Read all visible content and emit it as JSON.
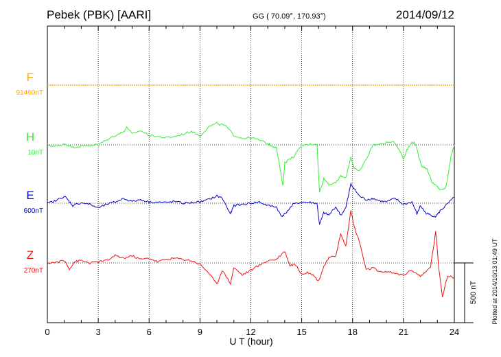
{
  "header": {
    "station": "Pebek (PBK)  [AARI]",
    "coords": "GG ( 70.09°, 170.93°)",
    "date": "2014/09/12"
  },
  "plotted_note": "Plotted at 2014/10/13 01:49 UT",
  "scale_bar_label": "500 nT",
  "chart_data": {
    "type": "line",
    "title": "",
    "xlabel": "U T (hour)",
    "ylabel": "",
    "xlim": [
      0,
      24
    ],
    "x_ticks": [
      0,
      3,
      6,
      9,
      12,
      15,
      18,
      21,
      24
    ],
    "x_tick_labels": [
      "0",
      "3",
      "6",
      "9",
      "12",
      "15",
      "18",
      "21",
      "24"
    ],
    "y_unit": "nT",
    "scale_nT": 500,
    "grid": true,
    "series": [
      {
        "name": "F",
        "baseline_label": "91460nT",
        "color": "#ffa500",
        "x": [
          0,
          24
        ],
        "y": [
          0,
          0
        ]
      },
      {
        "name": "H",
        "baseline_label": "10nT",
        "color": "#33ee33",
        "x": [
          0,
          0.5,
          1,
          1.5,
          2,
          2.5,
          3,
          3.5,
          4,
          4.5,
          4.7,
          5,
          5.5,
          6,
          6.5,
          7,
          7.5,
          8,
          8.5,
          9,
          9.5,
          10,
          10.5,
          11,
          11.5,
          12,
          12.5,
          13,
          13.2,
          13.5,
          13.7,
          13.9,
          14,
          14.5,
          15,
          15.5,
          15.9,
          16.05,
          16.3,
          16.6,
          17,
          17.3,
          17.6,
          17.9,
          18.1,
          18.4,
          18.8,
          19.2,
          19.6,
          20,
          20.5,
          20.8,
          21,
          21.2,
          21.5,
          21.7,
          21.9,
          22.1,
          22.4,
          22.7,
          23,
          23.2,
          23.5,
          23.8,
          24
        ],
        "y": [
          0,
          -15,
          10,
          -20,
          -10,
          -5,
          5,
          40,
          80,
          110,
          150,
          90,
          120,
          80,
          70,
          60,
          70,
          90,
          115,
          75,
          150,
          180,
          160,
          80,
          55,
          60,
          40,
          10,
          -5,
          -20,
          -180,
          -340,
          -150,
          -100,
          -10,
          5,
          10,
          -400,
          -280,
          -330,
          -320,
          -260,
          -280,
          -100,
          -200,
          -220,
          -120,
          0,
          5,
          20,
          20,
          -50,
          -120,
          -40,
          20,
          15,
          -100,
          -180,
          -200,
          -320,
          -350,
          -380,
          -360,
          -100,
          0
        ]
      },
      {
        "name": "E",
        "baseline_label": "600nT",
        "color": "#0000cc",
        "x": [
          0,
          0.5,
          1,
          1.2,
          1.5,
          2,
          2.5,
          3,
          3.5,
          4,
          4.5,
          5,
          5.5,
          6,
          6.5,
          7,
          7.5,
          8,
          8.5,
          9,
          9.5,
          10,
          10.3,
          10.8,
          11,
          11.5,
          12,
          12.5,
          13,
          13.5,
          13.8,
          14,
          14.5,
          15,
          15.5,
          15.9,
          16.05,
          16.3,
          16.6,
          17,
          17.3,
          17.6,
          17.9,
          18.1,
          18.4,
          18.8,
          19.2,
          19.6,
          20,
          20.5,
          21,
          21.5,
          21.8,
          22,
          22.3,
          22.6,
          22.9,
          23.2,
          23.5,
          24
        ],
        "y": [
          0,
          20,
          60,
          30,
          -20,
          5,
          -10,
          -40,
          -10,
          10,
          40,
          15,
          30,
          10,
          10,
          5,
          15,
          0,
          5,
          10,
          30,
          60,
          45,
          -90,
          -20,
          -10,
          0,
          10,
          -20,
          -30,
          -110,
          -90,
          -10,
          10,
          5,
          0,
          -180,
          -80,
          -100,
          -30,
          -100,
          -40,
          160,
          120,
          60,
          30,
          40,
          20,
          10,
          40,
          -10,
          10,
          -90,
          -20,
          -80,
          -100,
          -110,
          -60,
          -20,
          50
        ]
      },
      {
        "name": "Z",
        "baseline_label": "270nT",
        "color": "#ee1111",
        "x": [
          0,
          0.5,
          1,
          1.3,
          1.6,
          2,
          2.5,
          3,
          3.5,
          4,
          4.5,
          5,
          5.5,
          6,
          6.5,
          7,
          7.5,
          8,
          8.5,
          9,
          9.5,
          10,
          10.3,
          10.8,
          11,
          11.5,
          12,
          12.5,
          13,
          13.5,
          14,
          14.3,
          14.6,
          15,
          15.5,
          16,
          16.3,
          16.6,
          17,
          17.3,
          17.6,
          17.9,
          18.1,
          18.4,
          18.8,
          19.2,
          19.6,
          20,
          20.5,
          21,
          21.5,
          22,
          22.3,
          22.6,
          22.9,
          23.1,
          23.3,
          23.6,
          24
        ],
        "y": [
          0,
          5,
          20,
          -50,
          10,
          20,
          0,
          10,
          20,
          60,
          40,
          60,
          30,
          40,
          10,
          30,
          40,
          30,
          20,
          -10,
          -80,
          -180,
          -60,
          -170,
          -40,
          -100,
          -60,
          -20,
          20,
          30,
          100,
          -20,
          -10,
          -90,
          -80,
          -150,
          -30,
          40,
          60,
          240,
          140,
          440,
          300,
          180,
          -60,
          -40,
          -80,
          -70,
          -90,
          -100,
          -60,
          -110,
          -80,
          -30,
          260,
          -60,
          -280,
          -110,
          -120
        ]
      }
    ]
  }
}
